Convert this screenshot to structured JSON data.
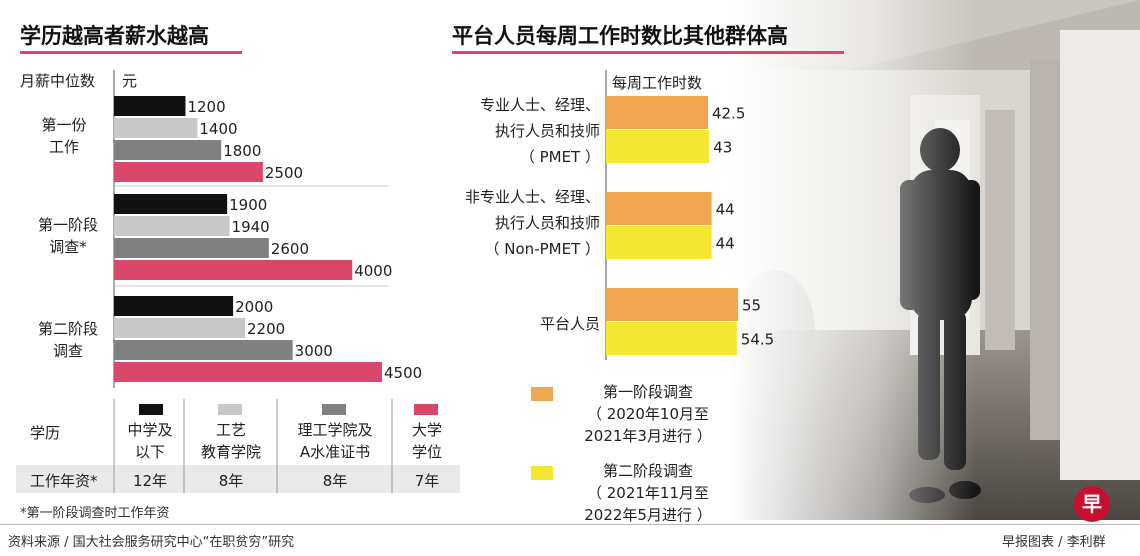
{
  "left_title": "学历越高者薪水越高",
  "right_title": "平台人员每周工作时数比其他群体高",
  "salary_axis_label": "月薪中位数",
  "salary_unit": "元",
  "hours_axis_label": "每周工作时数",
  "education_table": {
    "row_label": "学历",
    "years_label": "工作年资*",
    "columns": [
      {
        "label": "中学及\n以下",
        "years": "12年",
        "color": "#111111"
      },
      {
        "label": "工艺\n教育学院",
        "years": "8年",
        "color": "#c8c8c8"
      },
      {
        "label": "理工学院及\nA水准证书",
        "years": "8年",
        "color": "#808080"
      },
      {
        "label": "大学\n学位",
        "years": "7年",
        "color": "#d9486a"
      }
    ]
  },
  "salary_note": "*第一阶段调查时工作年资",
  "legend": [
    {
      "label": "第一阶段调查\n（ 2020年10月至\n2021年3月进行 ）",
      "color": "#f0a750"
    },
    {
      "label": "第二阶段调查\n（ 2021年11月至\n2022年5月进行 ）",
      "color": "#f5e632"
    }
  ],
  "footer_source": "资料来源 / 国大社会服务研究中心“在职贫穷”研究",
  "footer_credit": "早报图表 / 李利群",
  "logo_char": "早",
  "chart_data": [
    {
      "type": "bar",
      "orientation": "horizontal",
      "title": "学历越高者薪水越高",
      "ylabel": "月薪中位数",
      "unit": "元",
      "categories": [
        "第一份\n工作",
        "第一阶段\n调查*",
        "第二阶段\n调查"
      ],
      "series": [
        {
          "name": "中学及以下",
          "values": [
            1200,
            1900,
            2000
          ],
          "color": "#111111"
        },
        {
          "name": "工艺教育学院",
          "values": [
            1400,
            1940,
            2200
          ],
          "color": "#c8c8c8"
        },
        {
          "name": "理工学院及A水准证书",
          "values": [
            1800,
            2600,
            3000
          ],
          "color": "#808080"
        },
        {
          "name": "大学学位",
          "values": [
            2500,
            4000,
            4500
          ],
          "color": "#d9486a"
        }
      ],
      "xlim": [
        0,
        4500
      ],
      "data_labels": true,
      "grid": false
    },
    {
      "type": "bar",
      "orientation": "horizontal",
      "title": "平台人员每周工作时数比其他群体高",
      "ylabel": "每周工作时数",
      "categories": [
        "专业人士、经理、\n执行人员和技师\n（ PMET ）",
        "非专业人士、经理、\n执行人员和技师\n（ Non-PMET ）",
        "平台人员"
      ],
      "series": [
        {
          "name": "第一阶段调查",
          "values": [
            42.5,
            44,
            55
          ],
          "color": "#f0a750"
        },
        {
          "name": "第二阶段调查",
          "values": [
            43,
            44,
            54.5
          ],
          "color": "#f5e632"
        }
      ],
      "xlim": [
        0,
        55
      ],
      "legend_position": "bottom",
      "data_labels": true,
      "grid": false
    }
  ]
}
